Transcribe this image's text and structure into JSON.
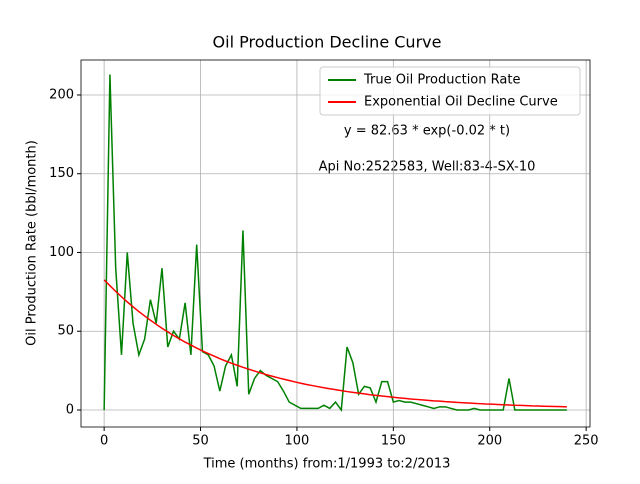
{
  "chart_data": {
    "type": "line",
    "title": "Oil Production Decline Curve",
    "xlabel": "Time (months) from:1/1993 to:2/2013",
    "ylabel": "Oil Production Rate (bbl/month)",
    "annotations": [
      "y = 82.63 * exp(-0.02 * t)",
      "Api No:2522583, Well:83-4-SX-10"
    ],
    "x": [
      0,
      3,
      6,
      9,
      12,
      15,
      18,
      21,
      24,
      27,
      30,
      33,
      36,
      39,
      42,
      45,
      48,
      51,
      54,
      57,
      60,
      63,
      66,
      69,
      72,
      75,
      78,
      81,
      84,
      87,
      90,
      93,
      96,
      99,
      102,
      105,
      108,
      111,
      114,
      117,
      120,
      123,
      126,
      129,
      132,
      135,
      138,
      141,
      144,
      147,
      150,
      153,
      156,
      159,
      162,
      165,
      168,
      171,
      174,
      177,
      180,
      183,
      186,
      189,
      192,
      195,
      198,
      201,
      204,
      207,
      210,
      213,
      216,
      219,
      222,
      225,
      228,
      231,
      234,
      237,
      240
    ],
    "series": [
      {
        "name": "True Oil Production Rate",
        "color": "#008000",
        "values": [
          0,
          213,
          90,
          35,
          100,
          55,
          35,
          45,
          70,
          55,
          90,
          40,
          50,
          45,
          68,
          35,
          105,
          37,
          35,
          28,
          12,
          28,
          35,
          15,
          114,
          10,
          20,
          25,
          22,
          20,
          18,
          12,
          5,
          3,
          1,
          1,
          1,
          1,
          3,
          1,
          5,
          0,
          40,
          30,
          10,
          15,
          14,
          5,
          18,
          18,
          5,
          6,
          5,
          5,
          4,
          3,
          2,
          1,
          2,
          2,
          1,
          0,
          0,
          0,
          1,
          0,
          0,
          0,
          0,
          0,
          20,
          0,
          0,
          0,
          0,
          0,
          0,
          0,
          0,
          0,
          0
        ]
      },
      {
        "name": "Exponential Oil Decline Curve",
        "color": "#ff0000",
        "values": [
          82.6,
          78.9,
          75.3,
          71.9,
          68.6,
          65.5,
          62.5,
          59.7,
          57.0,
          54.4,
          51.9,
          49.6,
          47.3,
          45.2,
          43.1,
          41.2,
          39.3,
          37.5,
          35.8,
          34.2,
          32.6,
          31.1,
          29.7,
          28.4,
          27.1,
          25.9,
          24.7,
          23.6,
          22.5,
          21.5,
          20.5,
          19.6,
          18.7,
          17.8,
          17.0,
          16.2,
          15.5,
          14.8,
          14.1,
          13.5,
          12.9,
          12.3,
          11.7,
          11.2,
          10.7,
          10.2,
          9.7,
          9.3,
          8.9,
          8.5,
          8.1,
          7.7,
          7.4,
          7.0,
          6.7,
          6.4,
          6.1,
          5.8,
          5.6,
          5.3,
          5.1,
          4.8,
          4.6,
          4.4,
          4.2,
          4.0,
          3.8,
          3.7,
          3.5,
          3.3,
          3.2,
          3.0,
          2.9,
          2.8,
          2.6,
          2.5,
          2.4,
          2.3,
          2.2,
          2.1,
          2.0
        ]
      }
    ],
    "xlim": [
      -12,
      252
    ],
    "ylim": [
      -10.8,
      222.2
    ],
    "xticks": [
      0,
      50,
      100,
      150,
      200,
      250
    ],
    "yticks": [
      0,
      50,
      100,
      150,
      200
    ],
    "grid": true,
    "legend": "upper right"
  }
}
